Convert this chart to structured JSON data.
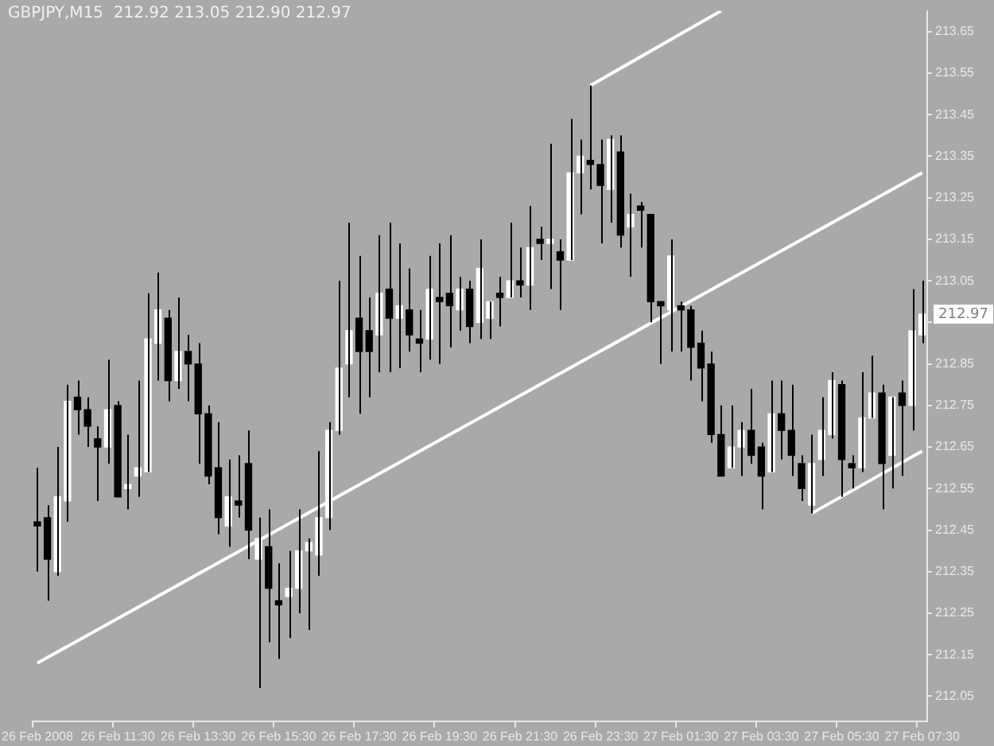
{
  "chart_data": {
    "type": "candlestick",
    "title": "GBPJPY,M15  212.92 213.05 212.90 212.97",
    "categories": [
      "26 Feb 2008",
      null,
      null,
      null,
      null,
      null,
      null,
      null,
      "26 Feb 11:30",
      null,
      null,
      null,
      null,
      null,
      null,
      null,
      "26 Feb 13:30",
      null,
      null,
      null,
      null,
      null,
      null,
      null,
      "26 Feb 15:30",
      null,
      null,
      null,
      null,
      null,
      null,
      null,
      "26 Feb 17:30",
      null,
      null,
      null,
      null,
      null,
      null,
      null,
      "26 Feb 19:30",
      null,
      null,
      null,
      null,
      null,
      null,
      null,
      "26 Feb 21:30",
      null,
      null,
      null,
      null,
      null,
      null,
      null,
      "26 Feb 23:30",
      null,
      null,
      null,
      null,
      null,
      null,
      null,
      "27 Feb 01:30",
      null,
      null,
      null,
      null,
      null,
      null,
      null,
      "27 Feb 03:30",
      null,
      null,
      null,
      null,
      null,
      null,
      null,
      "27 Feb 05:30",
      null,
      null,
      null,
      null,
      null,
      null,
      null,
      "27 Feb 07:30"
    ],
    "color": "#000000",
    "colors": [
      "#000000",
      "#000000",
      "#ffffff",
      "#ffffff",
      "#000000",
      "#000000",
      "#000000",
      "#ffffff",
      "#000000",
      "#ffffff",
      "#ffffff",
      "#ffffff",
      "#ffffff",
      "#000000",
      "#ffffff",
      "#000000",
      "#000000",
      "#000000",
      "#000000",
      "#ffffff",
      "#000000",
      "#000000",
      "#ffffff",
      "#000000",
      "#000000",
      "#ffffff",
      "#ffffff",
      "#ffffff",
      "#ffffff",
      "#ffffff",
      "#ffffff",
      "#ffffff",
      "#000000",
      "#000000",
      "#ffffff",
      "#000000",
      "#ffffff",
      "#000000",
      "#000000",
      "#ffffff",
      "#000000",
      "#000000",
      "#ffffff",
      "#000000",
      "#ffffff",
      "#ffffff",
      "#000000",
      "#ffffff",
      "#000000",
      "#ffffff",
      "#000000",
      "#ffffff",
      "#000000",
      "#ffffff",
      "#ffffff",
      "#000000",
      "#000000",
      "#ffffff",
      "#000000",
      "#ffffff",
      "#000000",
      "#000000",
      "#000000",
      "#ffffff",
      "#000000",
      "#000000",
      "#000000",
      "#000000",
      "#000000",
      "#ffffff",
      "#ffffff",
      "#000000",
      "#000000",
      "#ffffff",
      "#000000",
      "#000000",
      "#000000",
      "#ffffff",
      "#ffffff",
      "#ffffff",
      "#000000",
      "#000000",
      "#ffffff",
      "#ffffff",
      "#000000",
      "#ffffff",
      "#000000",
      "#ffffff",
      "#ffffff"
    ],
    "ohlc": [
      [
        212.47,
        212.6,
        212.35,
        212.46
      ],
      [
        212.48,
        212.51,
        212.28,
        212.38
      ],
      [
        212.35,
        212.65,
        212.34,
        212.53
      ],
      [
        212.52,
        212.8,
        212.47,
        212.76
      ],
      [
        212.77,
        212.81,
        212.68,
        212.74
      ],
      [
        212.74,
        212.77,
        212.65,
        212.7
      ],
      [
        212.67,
        212.7,
        212.52,
        212.65
      ],
      [
        212.65,
        212.86,
        212.61,
        212.74
      ],
      [
        212.75,
        212.76,
        212.53,
        212.53
      ],
      [
        212.55,
        212.68,
        212.5,
        212.56
      ],
      [
        212.58,
        212.81,
        212.53,
        212.6
      ],
      [
        212.59,
        213.02,
        212.59,
        212.91
      ],
      [
        212.9,
        213.07,
        212.81,
        212.98
      ],
      [
        212.96,
        212.98,
        212.76,
        212.81
      ],
      [
        212.81,
        213.01,
        212.79,
        212.88
      ],
      [
        212.88,
        212.92,
        212.76,
        212.85
      ],
      [
        212.85,
        212.9,
        212.61,
        212.73
      ],
      [
        212.73,
        212.75,
        212.56,
        212.58
      ],
      [
        212.6,
        212.71,
        212.44,
        212.48
      ],
      [
        212.46,
        212.62,
        212.41,
        212.53
      ],
      [
        212.52,
        212.63,
        212.48,
        212.51
      ],
      [
        212.61,
        212.69,
        212.38,
        212.45
      ],
      [
        212.38,
        212.48,
        212.07,
        212.43
      ],
      [
        212.41,
        212.5,
        212.18,
        212.31
      ],
      [
        212.28,
        212.37,
        212.14,
        212.27
      ],
      [
        212.29,
        212.4,
        212.19,
        212.31
      ],
      [
        212.31,
        212.5,
        212.25,
        212.4
      ],
      [
        212.4,
        212.43,
        212.21,
        212.42
      ],
      [
        212.39,
        212.64,
        212.34,
        212.48
      ],
      [
        212.48,
        212.71,
        212.45,
        212.69
      ],
      [
        212.69,
        213.05,
        212.68,
        212.84
      ],
      [
        212.85,
        213.19,
        212.77,
        212.93
      ],
      [
        212.96,
        213.11,
        212.73,
        212.88
      ],
      [
        212.93,
        213.01,
        212.77,
        212.88
      ],
      [
        212.92,
        213.16,
        212.83,
        213.02
      ],
      [
        213.03,
        213.19,
        212.83,
        212.96
      ],
      [
        212.96,
        213.14,
        212.84,
        212.99
      ],
      [
        212.98,
        213.08,
        212.88,
        212.92
      ],
      [
        212.91,
        212.98,
        212.83,
        212.9
      ],
      [
        212.91,
        213.11,
        212.86,
        213.03
      ],
      [
        213.01,
        213.14,
        212.85,
        213.0
      ],
      [
        213.02,
        213.16,
        212.89,
        212.99
      ],
      [
        212.98,
        213.06,
        212.93,
        213.03
      ],
      [
        213.03,
        213.05,
        212.9,
        212.94
      ],
      [
        212.95,
        213.15,
        212.91,
        213.08
      ],
      [
        212.96,
        213.0,
        212.91,
        213.0
      ],
      [
        213.02,
        213.06,
        212.94,
        213.01
      ],
      [
        213.01,
        213.19,
        213.01,
        213.05
      ],
      [
        213.05,
        213.13,
        213.01,
        213.04
      ],
      [
        213.04,
        213.23,
        212.98,
        213.13
      ],
      [
        213.15,
        213.18,
        213.1,
        213.14
      ],
      [
        213.14,
        213.38,
        213.03,
        213.15
      ],
      [
        213.12,
        213.15,
        212.98,
        213.1
      ],
      [
        213.1,
        213.44,
        213.1,
        213.31
      ],
      [
        213.31,
        213.39,
        213.21,
        213.35
      ],
      [
        213.34,
        213.52,
        213.27,
        213.33
      ],
      [
        213.33,
        213.39,
        213.14,
        213.28
      ],
      [
        213.27,
        213.4,
        213.19,
        213.39
      ],
      [
        213.36,
        213.4,
        213.13,
        213.16
      ],
      [
        213.18,
        213.26,
        213.06,
        213.21
      ],
      [
        213.23,
        213.24,
        213.13,
        213.22
      ],
      [
        213.21,
        213.21,
        212.95,
        213.0
      ],
      [
        213.0,
        213.0,
        212.85,
        212.99
      ],
      [
        212.98,
        213.15,
        212.88,
        213.11
      ],
      [
        212.99,
        213.0,
        212.88,
        212.98
      ],
      [
        212.98,
        212.99,
        212.81,
        212.89
      ],
      [
        212.9,
        212.93,
        212.76,
        212.84
      ],
      [
        212.85,
        212.88,
        212.66,
        212.68
      ],
      [
        212.68,
        212.75,
        212.58,
        212.58
      ],
      [
        212.6,
        212.75,
        212.6,
        212.65
      ],
      [
        212.65,
        212.71,
        212.58,
        212.69
      ],
      [
        212.69,
        212.79,
        212.61,
        212.63
      ],
      [
        212.65,
        212.66,
        212.5,
        212.58
      ],
      [
        212.59,
        212.81,
        212.59,
        212.73
      ],
      [
        212.73,
        212.81,
        212.62,
        212.69
      ],
      [
        212.69,
        212.8,
        212.58,
        212.63
      ],
      [
        212.61,
        212.63,
        212.52,
        212.55
      ],
      [
        212.51,
        212.68,
        212.49,
        212.61
      ],
      [
        212.62,
        212.77,
        212.58,
        212.69
      ],
      [
        212.68,
        212.83,
        212.67,
        212.81
      ],
      [
        212.8,
        212.81,
        212.53,
        212.62
      ],
      [
        212.61,
        212.63,
        212.55,
        212.6
      ],
      [
        212.6,
        212.83,
        212.59,
        212.72
      ],
      [
        212.72,
        212.87,
        212.72,
        212.78
      ],
      [
        212.78,
        212.8,
        212.5,
        212.61
      ],
      [
        212.63,
        212.77,
        212.55,
        212.77
      ],
      [
        212.78,
        212.81,
        212.58,
        212.75
      ],
      [
        212.75,
        213.03,
        212.69,
        212.93
      ],
      [
        212.92,
        213.05,
        212.9,
        212.97
      ]
    ],
    "series": [
      {
        "type": "line",
        "color": "#ffffff",
        "values": [
          212.13,
          null,
          null,
          null,
          null,
          null,
          null,
          null,
          null,
          null,
          null,
          null,
          null,
          null,
          null,
          null,
          null,
          null,
          null,
          null,
          null,
          null,
          null,
          null,
          null,
          null,
          null,
          null,
          null,
          null,
          null,
          null,
          null,
          null,
          null,
          null,
          null,
          null,
          null,
          null,
          null,
          null,
          null,
          null,
          null,
          null,
          null,
          null,
          null,
          null,
          null,
          null,
          null,
          null,
          null,
          null,
          null,
          null,
          null,
          null,
          null,
          null,
          null,
          null,
          null,
          null,
          null,
          null,
          null,
          null,
          null,
          null,
          null,
          null,
          null,
          null,
          null,
          null,
          null,
          null,
          null,
          null,
          null,
          null,
          null,
          null,
          null,
          null,
          213.31
        ]
      },
      {
        "type": "line",
        "color": "#ffffff",
        "values": [
          null,
          null,
          null,
          null,
          null,
          null,
          null,
          null,
          null,
          null,
          null,
          null,
          null,
          null,
          null,
          null,
          null,
          null,
          null,
          null,
          null,
          null,
          null,
          null,
          null,
          null,
          null,
          null,
          null,
          null,
          null,
          null,
          null,
          null,
          null,
          null,
          null,
          null,
          null,
          null,
          null,
          null,
          null,
          null,
          null,
          null,
          null,
          null,
          null,
          null,
          null,
          null,
          null,
          null,
          null,
          213.52,
          null,
          null,
          null,
          null,
          null,
          null,
          null,
          null,
          null,
          null,
          null,
          null,
          213.7,
          null,
          null,
          null,
          null,
          null,
          null,
          null,
          null,
          null,
          null,
          null,
          null,
          null,
          null,
          null,
          null,
          null,
          null,
          null,
          null
        ]
      },
      {
        "type": "line",
        "color": "#ffffff",
        "values": [
          null,
          null,
          null,
          null,
          null,
          null,
          null,
          null,
          null,
          null,
          null,
          null,
          null,
          null,
          null,
          null,
          null,
          null,
          null,
          null,
          null,
          null,
          null,
          null,
          null,
          null,
          null,
          null,
          null,
          null,
          null,
          null,
          null,
          null,
          null,
          null,
          null,
          null,
          null,
          null,
          null,
          null,
          null,
          null,
          null,
          null,
          null,
          null,
          null,
          null,
          null,
          null,
          null,
          null,
          null,
          null,
          null,
          null,
          null,
          null,
          null,
          null,
          null,
          null,
          null,
          null,
          null,
          null,
          null,
          null,
          null,
          null,
          null,
          null,
          null,
          null,
          null,
          212.49,
          null,
          null,
          null,
          null,
          null,
          null,
          null,
          null,
          null,
          null,
          212.64
        ]
      }
    ],
    "ylim": [
      211.99,
      213.7
    ],
    "yticks": [
      212.05,
      212.15,
      212.25,
      212.35,
      212.45,
      212.55,
      212.65,
      212.75,
      212.85,
      {
        "value": 212.95,
        "label": null
      },
      213.05,
      213.15,
      213.25,
      213.35,
      213.45,
      213.55,
      213.65
    ],
    "annotations": [
      "212.97"
    ]
  }
}
